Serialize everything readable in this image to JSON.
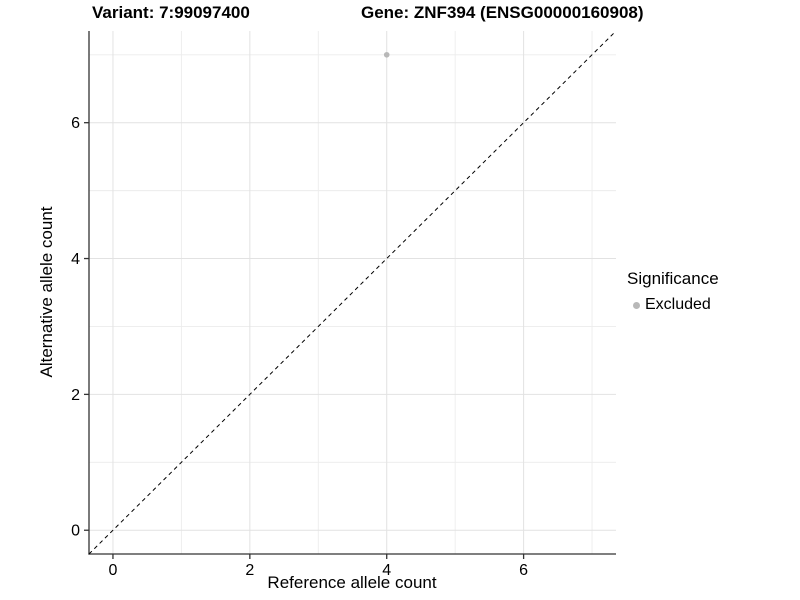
{
  "chart_data": {
    "type": "scatter",
    "titles": {
      "variant": "Variant: 7:99097400",
      "gene": "Gene: ZNF394 (ENSG00000160908)"
    },
    "xlabel": "Reference allele count",
    "ylabel": "Alternative allele count",
    "xlim": [
      -0.35,
      7.35
    ],
    "ylim": [
      -0.35,
      7.35
    ],
    "x_ticks": [
      0,
      2,
      4,
      6
    ],
    "y_ticks": [
      0,
      2,
      4,
      6
    ],
    "x_minor_gridlines": [
      1,
      3,
      5,
      7
    ],
    "y_minor_gridlines": [
      1,
      3,
      5,
      7
    ],
    "grid": true,
    "points": [
      {
        "x": 4,
        "y": 7,
        "significance": "Excluded"
      }
    ],
    "identity_line": {
      "slope": 1,
      "intercept": 0,
      "style": "dashed"
    },
    "legend": {
      "title": "Significance",
      "position": "right",
      "items": [
        {
          "label": "Excluded",
          "color": "#b8b8b8",
          "marker": "circle"
        }
      ]
    },
    "colors": {
      "point": "#b8b8b8",
      "grid_major": "#e2e2e2",
      "grid_minor": "#ececec",
      "axis_line": "#333333",
      "tick_mark": "#333333",
      "text": "#000000",
      "identity_line": "#000000",
      "background": "#ffffff"
    }
  }
}
